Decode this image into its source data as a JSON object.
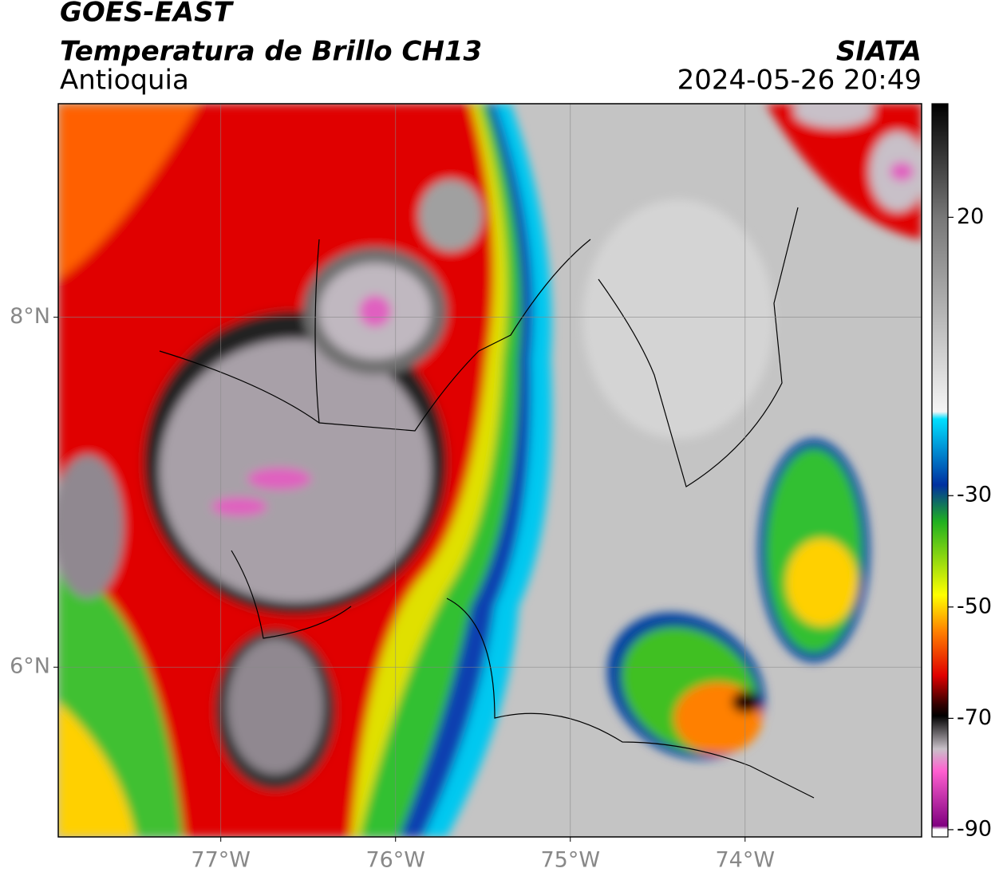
{
  "header": {
    "title": "GOES-EAST",
    "subtitle": "Temperatura de Brillo CH13",
    "region": "Antioquia",
    "source": "SIATA",
    "datetime": "2024-05-26 20:49"
  },
  "map": {
    "lon_range": [
      -77.93,
      -72.99
    ],
    "lat_range": [
      5.03,
      9.22
    ],
    "lon_ticks": [
      {
        "value": -77,
        "label": "77°W"
      },
      {
        "value": -76,
        "label": "76°W"
      },
      {
        "value": -75,
        "label": "75°W"
      },
      {
        "value": -74,
        "label": "74°W"
      }
    ],
    "lat_ticks": [
      {
        "value": 8,
        "label": "8°N"
      },
      {
        "value": 6,
        "label": "6°N"
      }
    ]
  },
  "colorbar": {
    "range": [
      -91.3,
      40.4
    ],
    "ticks": [
      20,
      -30,
      -50,
      -70,
      -90
    ]
  }
}
